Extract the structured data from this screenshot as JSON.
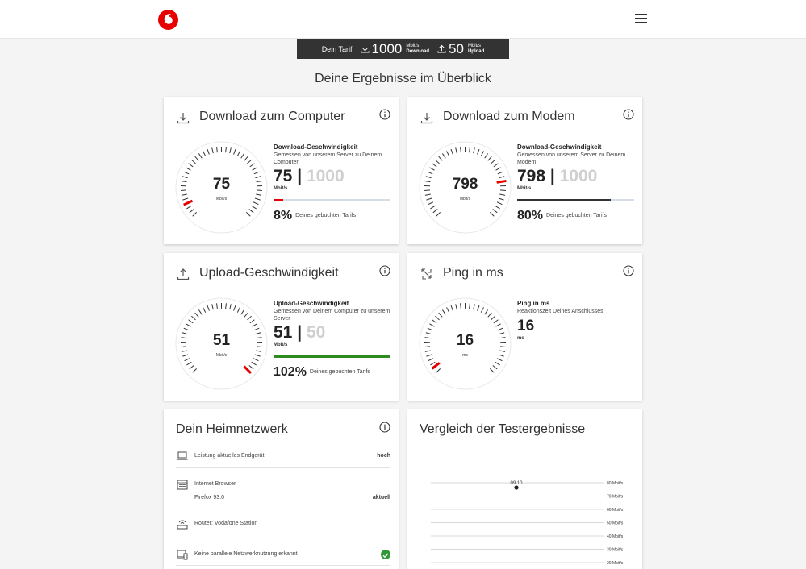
{
  "tarif": {
    "label": "Dein Tarif",
    "download_value": "1000",
    "download_unit": "Mbit/s",
    "download_label": "Download",
    "upload_value": "50",
    "upload_unit": "Mbit/s",
    "upload_label": "Upload"
  },
  "heading": "Deine Ergebnisse im Überblick",
  "cards": {
    "computer": {
      "title": "Download zum Computer",
      "gauge_value": "75",
      "gauge_unit": "Mbit/s",
      "gauge_fraction": 0.075,
      "metric_label": "Download-Geschwindigkeit",
      "metric_desc": "Gemessen von unserem Server zu Deinem Computer",
      "value": "75",
      "separator": "|",
      "max": "1000",
      "unit": "Mbit/s",
      "bar_fraction": 0.08,
      "bar_color": "#e60000",
      "percent": "8%",
      "percent_label": "Deines gebuchten Tarifs"
    },
    "modem": {
      "title": "Download zum Modem",
      "gauge_value": "798",
      "gauge_unit": "Mbit/s",
      "gauge_fraction": 0.8,
      "metric_label": "Download-Geschwindigkeit",
      "metric_desc": "Gemessen von unserem Server zu Deinem Modem",
      "value": "798",
      "separator": "|",
      "max": "1000",
      "unit": "Mbit/s",
      "bar_fraction": 0.8,
      "bar_color": "#333333",
      "percent": "80%",
      "percent_label": "Deines gebuchten Tarifs"
    },
    "upload": {
      "title": "Upload-Geschwindigkeit",
      "gauge_value": "51",
      "gauge_unit": "Mbit/s",
      "gauge_fraction": 1.0,
      "metric_label": "Upload-Geschwindigkeit",
      "metric_desc": "Gemessen von Deinem Computer zu unserem Server",
      "value": "51",
      "separator": "|",
      "max": "50",
      "unit": "Mbit/s",
      "bar_fraction": 1.0,
      "bar_color": "#2e8b1f",
      "percent": "102%",
      "percent_label": "Deines gebuchten Tarifs"
    },
    "ping": {
      "title": "Ping in ms",
      "gauge_value": "16",
      "gauge_unit": "ms",
      "gauge_fraction": 0.03,
      "metric_label": "Ping in ms",
      "metric_desc": "Reaktionszeit Deines Anschlusses",
      "value": "16",
      "unit": "ms"
    }
  },
  "network": {
    "title": "Dein Heimnetzwerk",
    "rows": [
      {
        "icon": "laptop-icon",
        "text": "Leistung aktuelles Endgerät",
        "value": "hoch"
      },
      {
        "icon": "browser-icon",
        "text": "Internet Browser",
        "subtext": "Firefox 93.0",
        "value": "aktuell"
      },
      {
        "icon": "router-icon",
        "text": "Router: Vodafone Station",
        "value": ""
      },
      {
        "icon": "devices-icon",
        "text": "Keine parallele Netzwerknutzung erkannt",
        "status": "ok"
      }
    ]
  },
  "comparison": {
    "title": "Vergleich der Testergebnisse"
  },
  "chart_data": {
    "type": "scatter",
    "x": [
      "09.10"
    ],
    "values": [
      80
    ],
    "y_ticks": [
      "80 Mbit/s",
      "70 Mbit/s",
      "60 Mbit/s",
      "50 Mbit/s",
      "40 Mbit/s",
      "30 Mbit/s",
      "20 Mbit/s"
    ],
    "ylim": [
      20,
      80
    ],
    "grid": true,
    "point_labels": [
      "09.10"
    ]
  },
  "colors": {
    "brand": "#e60000",
    "dark": "#333333",
    "success": "#2e9a35"
  }
}
